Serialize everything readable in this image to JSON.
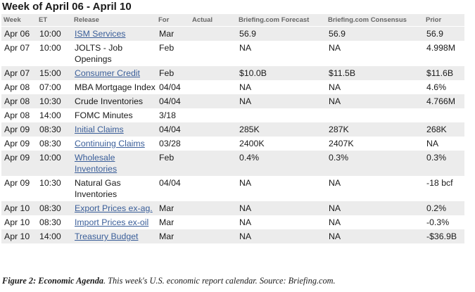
{
  "title": "Week of April 06 - April 10",
  "headers": [
    "Week",
    "ET",
    "Release",
    "For",
    "Actual",
    "Briefing.com Forecast",
    "Briefing.com Consensus",
    "Prior"
  ],
  "rows": [
    {
      "date": "Apr 06",
      "time": "10:00",
      "release": "ISM Services",
      "link": true,
      "for": "Mar",
      "actual": "",
      "forecast": "56.9",
      "consensus": "56.9",
      "prior": "56.9"
    },
    {
      "date": "Apr 07",
      "time": "10:00",
      "release": "JOLTS - Job Openings",
      "link": false,
      "for": "Feb",
      "actual": "",
      "forecast": "NA",
      "consensus": "NA",
      "prior": "4.998M"
    },
    {
      "date": "Apr 07",
      "time": "15:00",
      "release": "Consumer Credit",
      "link": true,
      "for": "Feb",
      "actual": "",
      "forecast": "$10.0B",
      "consensus": "$11.5B",
      "prior": "$11.6B"
    },
    {
      "date": "Apr 08",
      "time": "07:00",
      "release": "MBA Mortgage Index",
      "link": false,
      "for": "04/04",
      "actual": "",
      "forecast": "NA",
      "consensus": "NA",
      "prior": "4.6%"
    },
    {
      "date": "Apr 08",
      "time": "10:30",
      "release": "Crude Inventories",
      "link": false,
      "for": "04/04",
      "actual": "",
      "forecast": "NA",
      "consensus": "NA",
      "prior": "4.766M"
    },
    {
      "date": "Apr 08",
      "time": "14:00",
      "release": "FOMC Minutes",
      "link": false,
      "for": "3/18",
      "actual": "",
      "forecast": "",
      "consensus": "",
      "prior": ""
    },
    {
      "date": "Apr 09",
      "time": "08:30",
      "release": "Initial Claims",
      "link": true,
      "for": "04/04",
      "actual": "",
      "forecast": "285K",
      "consensus": "287K",
      "prior": "268K"
    },
    {
      "date": "Apr 09",
      "time": "08:30",
      "release": "Continuing Claims",
      "link": true,
      "for": "03/28",
      "actual": "",
      "forecast": "2400K",
      "consensus": "2407K",
      "prior": "NA"
    },
    {
      "date": "Apr 09",
      "time": "10:00",
      "release": "Wholesale Inventories",
      "link": true,
      "for": "Feb",
      "actual": "",
      "forecast": "0.4%",
      "consensus": "0.3%",
      "prior": "0.3%"
    },
    {
      "date": "Apr 09",
      "time": "10:30",
      "release": "Natural Gas Inventories",
      "link": false,
      "for": "04/04",
      "actual": "",
      "forecast": "NA",
      "consensus": "NA",
      "prior": "-18 bcf"
    },
    {
      "date": "Apr 10",
      "time": "08:30",
      "release": "Export Prices ex-ag.",
      "link": true,
      "for": "Mar",
      "actual": "",
      "forecast": "NA",
      "consensus": "NA",
      "prior": "0.2%"
    },
    {
      "date": "Apr 10",
      "time": "08:30",
      "release": "Import Prices ex-oil",
      "link": true,
      "for": "Mar",
      "actual": "",
      "forecast": "NA",
      "consensus": "NA",
      "prior": "-0.3%"
    },
    {
      "date": "Apr 10",
      "time": "14:00",
      "release": "Treasury Budget",
      "link": true,
      "for": "Mar",
      "actual": "",
      "forecast": "NA",
      "consensus": "NA",
      "prior": "-$36.9B"
    }
  ],
  "caption": {
    "lead": "Figure 2: Economic Agenda",
    "text": ". This week's U.S. economic report calendar. Source: Briefing.com."
  },
  "colors": {
    "row_shade": "#ececec",
    "link": "#3a5e99",
    "header_text": "#666666"
  }
}
